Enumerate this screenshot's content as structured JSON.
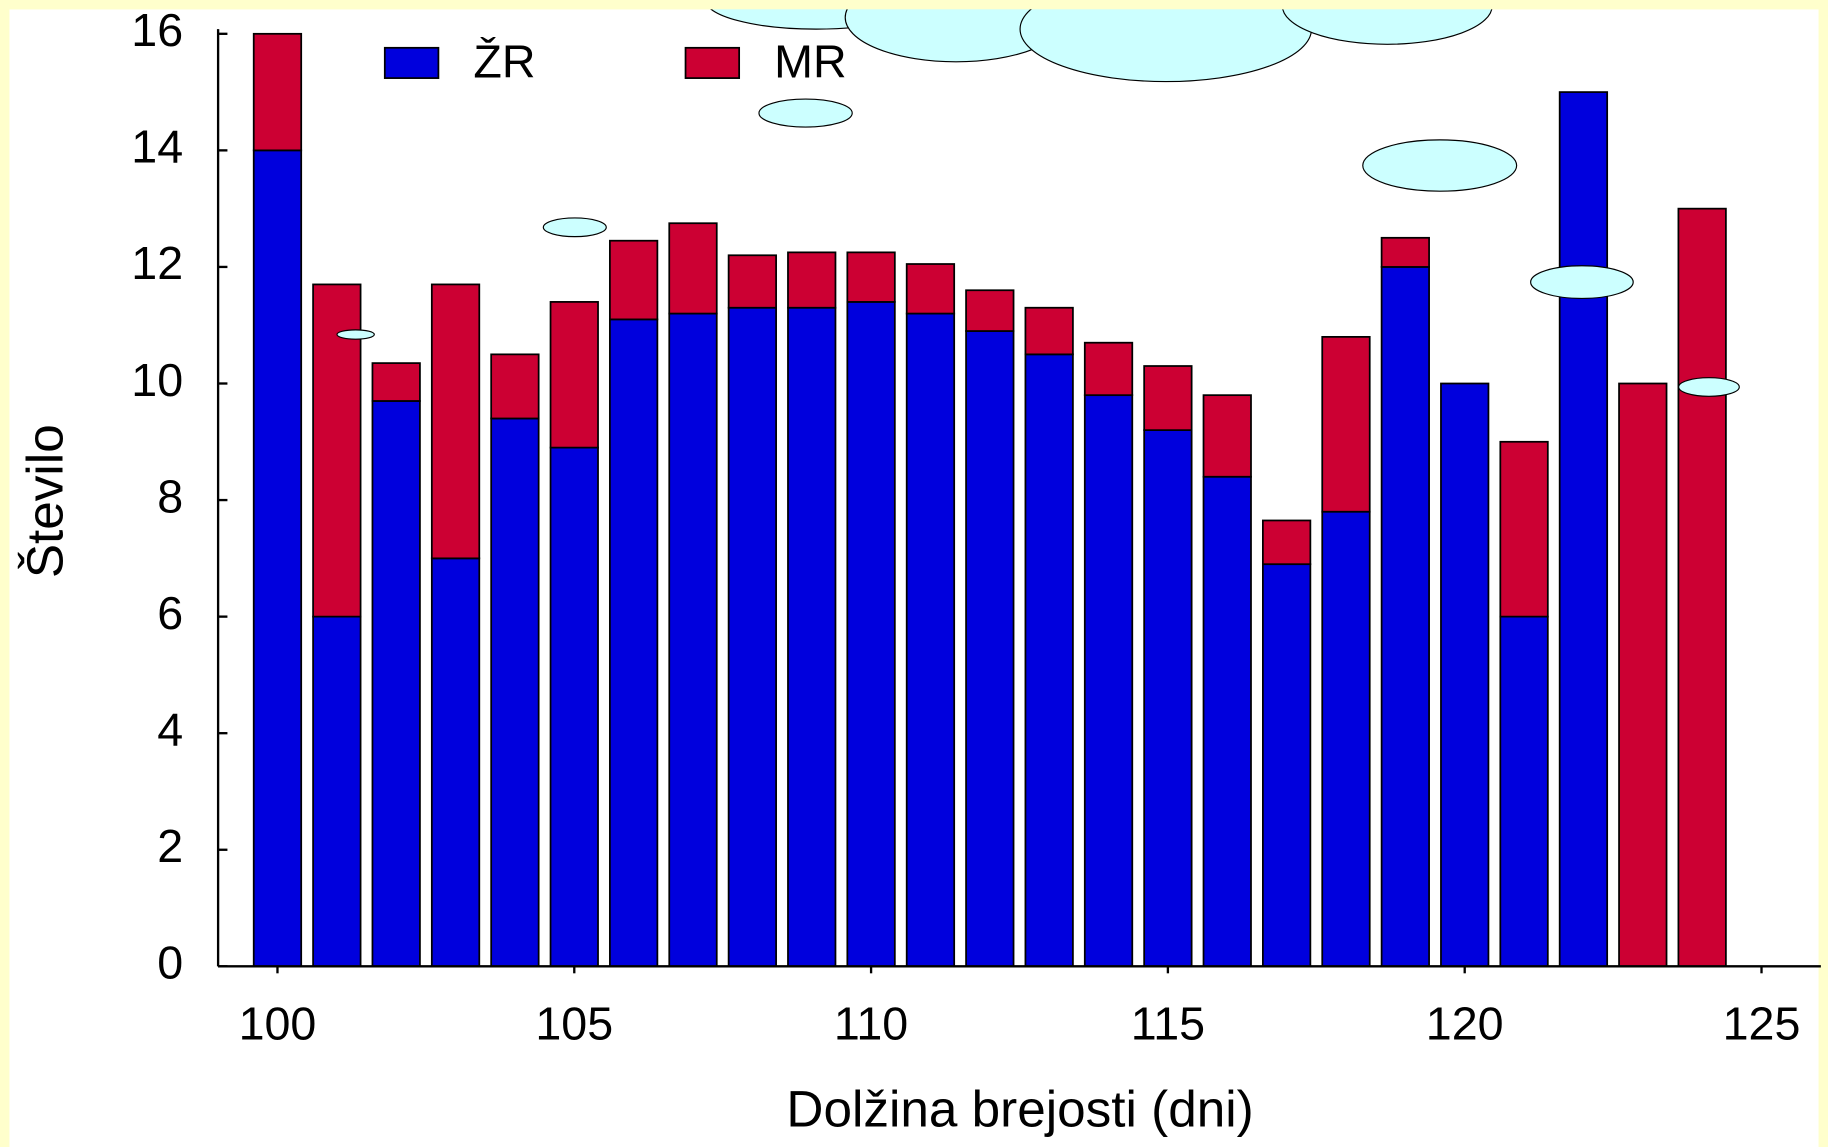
{
  "chart_data": {
    "type": "stacked_bar",
    "x": [
      100,
      101,
      102,
      103,
      104,
      105,
      106,
      107,
      108,
      109,
      110,
      111,
      112,
      113,
      114,
      115,
      116,
      117,
      118,
      119,
      120,
      121,
      122,
      123,
      124
    ],
    "series": [
      {
        "name": "ŽR",
        "color": "#0000dd",
        "values": [
          14,
          6,
          9.7,
          7,
          9.4,
          8.9,
          11.1,
          11.2,
          11.3,
          11.3,
          11.4,
          11.2,
          10.9,
          10.5,
          9.8,
          9.2,
          8.4,
          6.9,
          7.8,
          12,
          10,
          6,
          15,
          0,
          0
        ]
      },
      {
        "name": "MR",
        "color": "#cc0033",
        "values": [
          2,
          5.7,
          0.65,
          4.7,
          1.1,
          2.5,
          1.35,
          1.55,
          0.9,
          0.95,
          0.85,
          0.85,
          0.7,
          0.8,
          0.9,
          1.1,
          1.4,
          0.75,
          3,
          0.5,
          0,
          3,
          0,
          10,
          13
        ]
      }
    ],
    "xlabel": "Dolžina brejosti (dni)",
    "ylabel": "Število",
    "xlim": [
      99,
      126
    ],
    "ylim": [
      0,
      16
    ],
    "xticks": [
      100,
      105,
      110,
      115,
      120,
      125
    ],
    "yticks": [
      0,
      2,
      4,
      6,
      8,
      10,
      12,
      14,
      16
    ],
    "legend": "top-left"
  }
}
